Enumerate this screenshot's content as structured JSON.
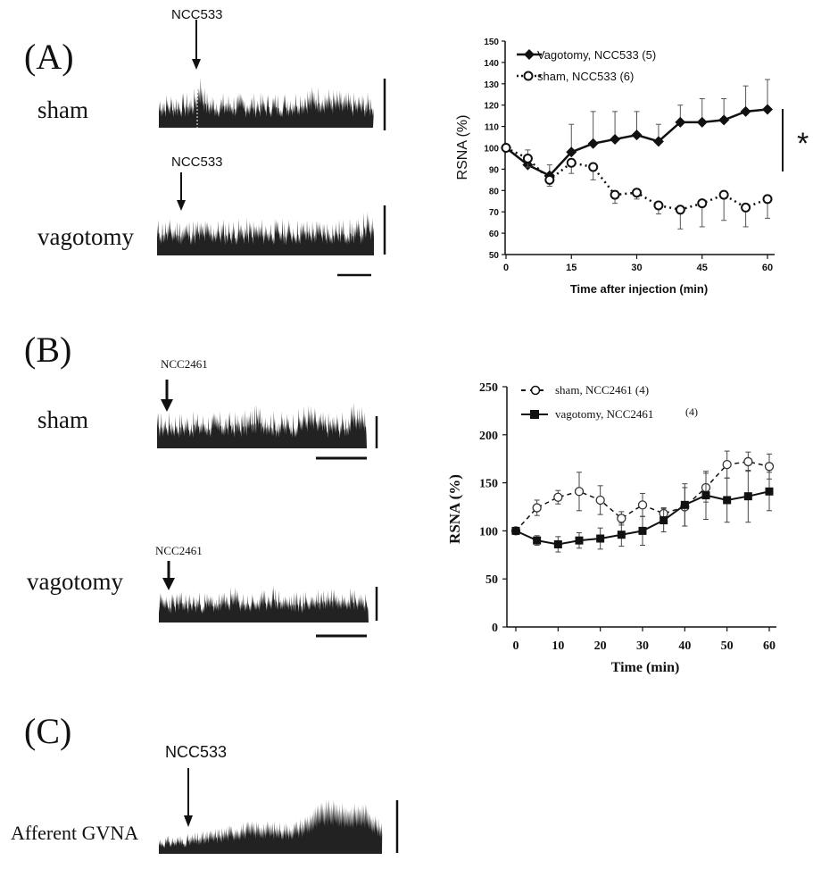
{
  "panels": {
    "A": {
      "letter": "(A)",
      "sham_label": "sham",
      "vagotomy_label": "vagotomy",
      "drug_label_1": "NCC533",
      "drug_label_2": "NCC533",
      "significance": "*"
    },
    "B": {
      "letter": "(B)",
      "sham_label": "sham",
      "vagotomy_label": "vagotomy",
      "drug_label_1": "NCC2461",
      "drug_label_2": "NCC2461"
    },
    "C": {
      "letter": "(C)",
      "trace_label": "Afferent  GVNA",
      "drug_label": "NCC533"
    }
  },
  "chart_data": [
    {
      "type": "line",
      "ylabel": "RSNA (%)",
      "xlabel": "Time after injection   (min)",
      "xlim": [
        0,
        60
      ],
      "ylim": [
        50,
        150
      ],
      "xticks": [
        "0",
        "15",
        "30",
        "45",
        "60"
      ],
      "yticks": [
        "50",
        "60",
        "70",
        "80",
        "90",
        "100",
        "110",
        "120",
        "130",
        "140",
        "150"
      ],
      "legend_position": "top-left",
      "series": [
        {
          "name": "Vagotomy, NCC533  (5)",
          "marker": "filled-diamond",
          "line": "solid",
          "x": [
            0,
            5,
            10,
            15,
            20,
            25,
            30,
            35,
            40,
            45,
            50,
            55,
            60
          ],
          "y": [
            100,
            92,
            87,
            98,
            102,
            104,
            106,
            103,
            112,
            112,
            113,
            117,
            118
          ],
          "err": [
            0,
            7,
            5,
            13,
            15,
            13,
            11,
            8,
            8,
            11,
            10,
            12,
            14
          ]
        },
        {
          "name": "sham, NCC533 (6)",
          "marker": "open-circle",
          "line": "dotted",
          "x": [
            0,
            5,
            10,
            15,
            20,
            25,
            30,
            35,
            40,
            45,
            50,
            55,
            60
          ],
          "y": [
            100,
            95,
            85,
            93,
            91,
            78,
            79,
            73,
            71,
            74,
            78,
            72,
            76
          ],
          "err": [
            0,
            4,
            3,
            5,
            6,
            4,
            3,
            4,
            9,
            11,
            12,
            9,
            9
          ]
        }
      ]
    },
    {
      "type": "line",
      "ylabel": "RSNA (%)",
      "xlabel": "Time (min)",
      "xlim": [
        0,
        60
      ],
      "ylim": [
        0,
        250
      ],
      "xticks": [
        "0",
        "10",
        "20",
        "30",
        "40",
        "50",
        "60"
      ],
      "yticks": [
        "0",
        "50",
        "100",
        "150",
        "200",
        "250"
      ],
      "legend_position": "top-left",
      "series": [
        {
          "name": "sham,  NCC2461  (4)",
          "marker": "open-circle",
          "line": "dashed",
          "x": [
            0,
            5,
            10,
            15,
            20,
            25,
            30,
            35,
            40,
            45,
            50,
            55,
            60
          ],
          "y": [
            100,
            124,
            135,
            141,
            132,
            113,
            127,
            118,
            125,
            145,
            169,
            172,
            167
          ],
          "err": [
            0,
            8,
            7,
            20,
            15,
            7,
            12,
            6,
            20,
            15,
            14,
            10,
            13
          ]
        },
        {
          "name": "vagotomy,  NCC2461",
          "count_label": "(4)",
          "marker": "filled-square",
          "line": "solid",
          "x": [
            0,
            5,
            10,
            15,
            20,
            25,
            30,
            35,
            40,
            45,
            50,
            55,
            60
          ],
          "y": [
            100,
            90,
            86,
            90,
            92,
            96,
            100,
            111,
            127,
            137,
            132,
            136,
            141
          ],
          "err": [
            0,
            5,
            8,
            8,
            11,
            12,
            15,
            12,
            22,
            25,
            23,
            27,
            20
          ]
        }
      ]
    }
  ]
}
